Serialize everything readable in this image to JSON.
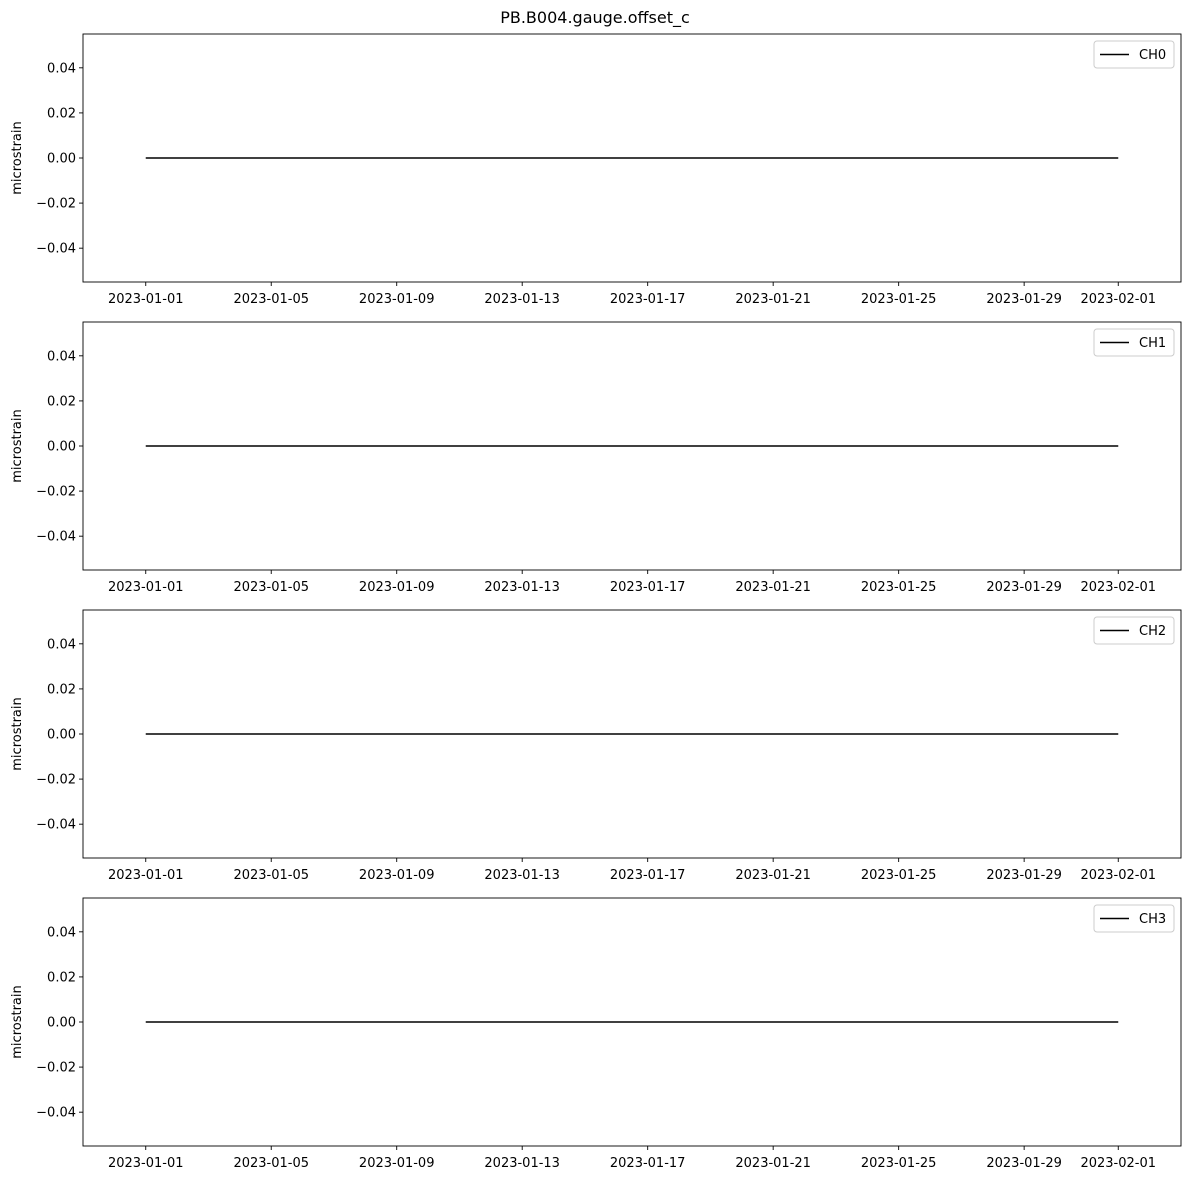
{
  "figure": {
    "title": "PB.B004.gauge.offset_c"
  },
  "colors": {
    "line": "#000000",
    "axes": "#000000",
    "background": "#ffffff",
    "legend_border": "#cccccc"
  },
  "chart_data": [
    {
      "type": "line",
      "ylabel": "microstrain",
      "xlabel": "",
      "xlim": [
        "2022-12-30",
        "2023-02-03"
      ],
      "ylim": [
        -0.055,
        0.055
      ],
      "x_ticks": [
        "2023-01-01",
        "2023-01-05",
        "2023-01-09",
        "2023-01-13",
        "2023-01-17",
        "2023-01-21",
        "2023-01-25",
        "2023-01-29",
        "2023-02-01"
      ],
      "y_ticks": [
        0.04,
        0.02,
        0.0,
        -0.02,
        -0.04
      ],
      "y_tick_labels": [
        "0.04",
        "0.02",
        "0.00",
        "−0.02",
        "−0.04"
      ],
      "grid": false,
      "legend_position": "upper right",
      "series": [
        {
          "name": "CH0",
          "color": "#000000",
          "x": [
            "2023-01-01",
            "2023-02-01"
          ],
          "y": [
            0.0,
            0.0
          ]
        }
      ]
    },
    {
      "type": "line",
      "ylabel": "microstrain",
      "xlabel": "",
      "xlim": [
        "2022-12-30",
        "2023-02-03"
      ],
      "ylim": [
        -0.055,
        0.055
      ],
      "x_ticks": [
        "2023-01-01",
        "2023-01-05",
        "2023-01-09",
        "2023-01-13",
        "2023-01-17",
        "2023-01-21",
        "2023-01-25",
        "2023-01-29",
        "2023-02-01"
      ],
      "y_ticks": [
        0.04,
        0.02,
        0.0,
        -0.02,
        -0.04
      ],
      "y_tick_labels": [
        "0.04",
        "0.02",
        "0.00",
        "−0.02",
        "−0.04"
      ],
      "grid": false,
      "legend_position": "upper right",
      "series": [
        {
          "name": "CH1",
          "color": "#000000",
          "x": [
            "2023-01-01",
            "2023-02-01"
          ],
          "y": [
            0.0,
            0.0
          ]
        }
      ]
    },
    {
      "type": "line",
      "ylabel": "microstrain",
      "xlabel": "",
      "xlim": [
        "2022-12-30",
        "2023-02-03"
      ],
      "ylim": [
        -0.055,
        0.055
      ],
      "x_ticks": [
        "2023-01-01",
        "2023-01-05",
        "2023-01-09",
        "2023-01-13",
        "2023-01-17",
        "2023-01-21",
        "2023-01-25",
        "2023-01-29",
        "2023-02-01"
      ],
      "y_ticks": [
        0.04,
        0.02,
        0.0,
        -0.02,
        -0.04
      ],
      "y_tick_labels": [
        "0.04",
        "0.02",
        "0.00",
        "−0.02",
        "−0.04"
      ],
      "grid": false,
      "legend_position": "upper right",
      "series": [
        {
          "name": "CH2",
          "color": "#000000",
          "x": [
            "2023-01-01",
            "2023-02-01"
          ],
          "y": [
            0.0,
            0.0
          ]
        }
      ]
    },
    {
      "type": "line",
      "ylabel": "microstrain",
      "xlabel": "",
      "xlim": [
        "2022-12-30",
        "2023-02-03"
      ],
      "ylim": [
        -0.055,
        0.055
      ],
      "x_ticks": [
        "2023-01-01",
        "2023-01-05",
        "2023-01-09",
        "2023-01-13",
        "2023-01-17",
        "2023-01-21",
        "2023-01-25",
        "2023-01-29",
        "2023-02-01"
      ],
      "y_ticks": [
        0.04,
        0.02,
        0.0,
        -0.02,
        -0.04
      ],
      "y_tick_labels": [
        "0.04",
        "0.02",
        "0.00",
        "−0.02",
        "−0.04"
      ],
      "grid": false,
      "legend_position": "upper right",
      "series": [
        {
          "name": "CH3",
          "color": "#000000",
          "x": [
            "2023-01-01",
            "2023-02-01"
          ],
          "y": [
            0.0,
            0.0
          ]
        }
      ]
    }
  ]
}
